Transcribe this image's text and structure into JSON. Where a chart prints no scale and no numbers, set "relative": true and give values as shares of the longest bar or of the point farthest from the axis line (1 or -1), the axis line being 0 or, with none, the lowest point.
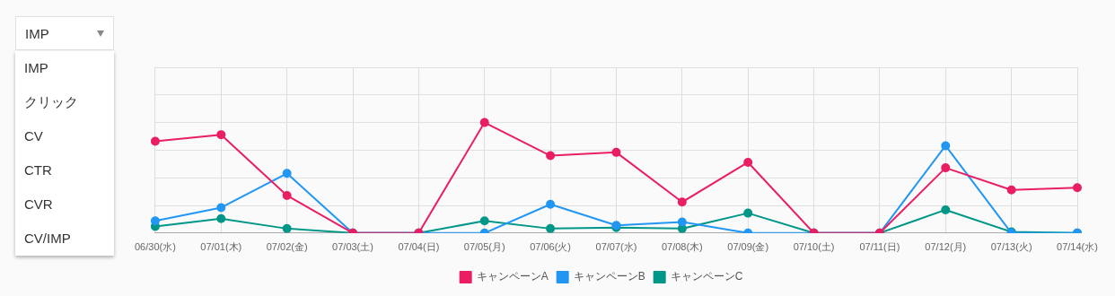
{
  "chart_data": {
    "type": "line",
    "relative": true,
    "categories": [
      "06/30(水)",
      "07/01(木)",
      "07/02(金)",
      "07/03(土)",
      "07/04(日)",
      "07/05(月)",
      "07/06(火)",
      "07/07(水)",
      "07/08(木)",
      "07/09(金)",
      "07/10(土)",
      "07/11(日)",
      "07/12(月)",
      "07/13(火)",
      "07/14(水)"
    ],
    "series": [
      {
        "name": "キャンペーンA",
        "color": "#e91e63",
        "values": [
          0.83,
          0.89,
          0.34,
          0,
          0,
          1,
          0.7,
          0.73,
          0.28,
          0.64,
          0,
          0,
          0.59,
          0.39,
          0.41
        ]
      },
      {
        "name": "キャンペーンB",
        "color": "#2196f3",
        "values": [
          0.11,
          0.23,
          0.54,
          0,
          0,
          0,
          0.26,
          0.07,
          0.1,
          0,
          0,
          0,
          0.79,
          0,
          0
        ]
      },
      {
        "name": "キャンペーンC",
        "color": "#009688",
        "values": [
          0.06,
          0.13,
          0.04,
          0,
          0,
          0.11,
          0.04,
          0.05,
          0.04,
          0.18,
          0,
          0,
          0.21,
          0.01,
          0
        ]
      }
    ],
    "grid": true,
    "legend": "bottom",
    "marker": "circle",
    "line_style": "solid",
    "annotations": [
      "IMP",
      "IMP",
      "クリック",
      "CV",
      "CTR",
      "CVR",
      "CV/IMP"
    ]
  }
}
